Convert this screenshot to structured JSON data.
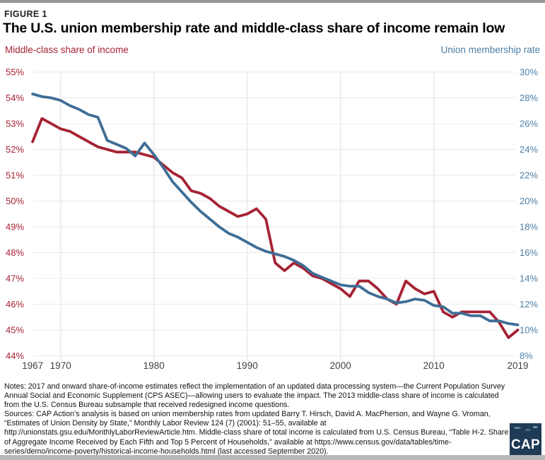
{
  "header": {
    "figure_label": "FIGURE 1",
    "title": "The U.S. union membership rate and middle-class share of income remain low"
  },
  "chart_data": {
    "type": "line",
    "title": "The U.S. union membership rate and middle-class share of income remain low",
    "grid": true,
    "left_axis": {
      "label": "Middle-class share of income",
      "color": "#A62334",
      "min": 44,
      "max": 55,
      "ticks": [
        "55%",
        "54%",
        "53%",
        "52%",
        "51%",
        "50%",
        "49%",
        "48%",
        "47%",
        "46%",
        "45%",
        "44%"
      ]
    },
    "right_axis": {
      "label": "Union membership rate",
      "color": "#4D7FA6",
      "min": 8,
      "max": 30,
      "ticks": [
        "30%",
        "28%",
        "26%",
        "24%",
        "22%",
        "20%",
        "18%",
        "16%",
        "14%",
        "12%",
        "10%",
        "8%"
      ]
    },
    "x_axis": {
      "range": [
        1967,
        2019
      ],
      "tick_years": [
        1967,
        1970,
        1980,
        1990,
        2000,
        2010,
        2019
      ],
      "gridline_years": [
        1970,
        1980,
        1990,
        2000,
        2010
      ]
    },
    "years": [
      1967,
      1968,
      1969,
      1970,
      1971,
      1972,
      1973,
      1974,
      1975,
      1976,
      1977,
      1978,
      1979,
      1980,
      1981,
      1982,
      1983,
      1984,
      1985,
      1986,
      1987,
      1988,
      1989,
      1990,
      1991,
      1992,
      1993,
      1994,
      1995,
      1996,
      1997,
      1998,
      1999,
      2000,
      2001,
      2002,
      2003,
      2004,
      2005,
      2006,
      2007,
      2008,
      2009,
      2010,
      2011,
      2012,
      2013,
      2014,
      2015,
      2016,
      2017,
      2018,
      2019
    ],
    "series": [
      {
        "name": "Middle-class share of income",
        "axis": "left",
        "color": "#A62334",
        "values": [
          52.3,
          53.2,
          53.0,
          52.8,
          52.7,
          52.5,
          52.3,
          52.1,
          52.0,
          51.9,
          51.9,
          51.9,
          51.8,
          51.7,
          51.4,
          51.1,
          50.9,
          50.4,
          50.3,
          50.1,
          49.8,
          49.6,
          49.4,
          49.5,
          49.7,
          49.3,
          47.6,
          47.3,
          47.6,
          47.4,
          47.1,
          47.0,
          46.8,
          46.6,
          46.3,
          46.9,
          46.9,
          46.6,
          46.2,
          46.0,
          46.9,
          46.6,
          46.4,
          46.5,
          45.7,
          45.5,
          45.7,
          45.7,
          45.7,
          45.7,
          45.3,
          44.7,
          45.0
        ]
      },
      {
        "name": "Union membership rate",
        "axis": "right",
        "color": "#3E6E96",
        "values": [
          28.3,
          28.1,
          28.0,
          27.8,
          27.4,
          27.1,
          26.7,
          26.5,
          24.7,
          24.4,
          24.1,
          23.5,
          24.5,
          23.6,
          22.6,
          21.5,
          20.7,
          19.9,
          19.2,
          18.6,
          18.0,
          17.5,
          17.2,
          16.8,
          16.4,
          16.1,
          15.9,
          15.7,
          15.4,
          15.0,
          14.4,
          14.1,
          13.8,
          13.5,
          13.4,
          13.4,
          12.9,
          12.6,
          12.4,
          12.1,
          12.2,
          12.4,
          12.3,
          11.9,
          11.8,
          11.3,
          11.3,
          11.1,
          11.1,
          10.7,
          10.7,
          10.5,
          10.4
        ]
      }
    ],
    "style": {
      "h_grid_color": "#e8e8e8",
      "v_grid_color": "#eeeeee",
      "x_tick_color": "#414141",
      "line_width": 3.8
    }
  },
  "footer": {
    "notes": "Notes: 2017 and onward share-of-income estimates reflect the implementation of an updated data processing system—the Current Population Survey Annual Social and Economic Supplement (CPS ASEC)—allowing users to evaluate the impact. The 2013 middle-class share of income is calculated from the U.S. Census Bureau subsample that received redesigned income questions.",
    "sources": "Sources: CAP Action’s analysis is based on union membership rates from updated Barry T. Hirsch, David A. MacPherson, and Wayne G. Vroman, “Estimates of Union Density by State,” Monthly Labor Review 124 (7) (2001): 51–55, available at http://unionstats.gsu.edu/MonthlyLaborReviewArticle.htm. Middle-class share of total income is calculated from U.S. Census Bureau, “Table H-2. Share of Aggregate Income Received by Each Fifth and Top 5 Percent of Households,” available at https://www.census.gov/data/tables/time-series/demo/income-poverty/historical-income-households.html (last accessed September 2020).",
    "logo_text": "CAP"
  }
}
